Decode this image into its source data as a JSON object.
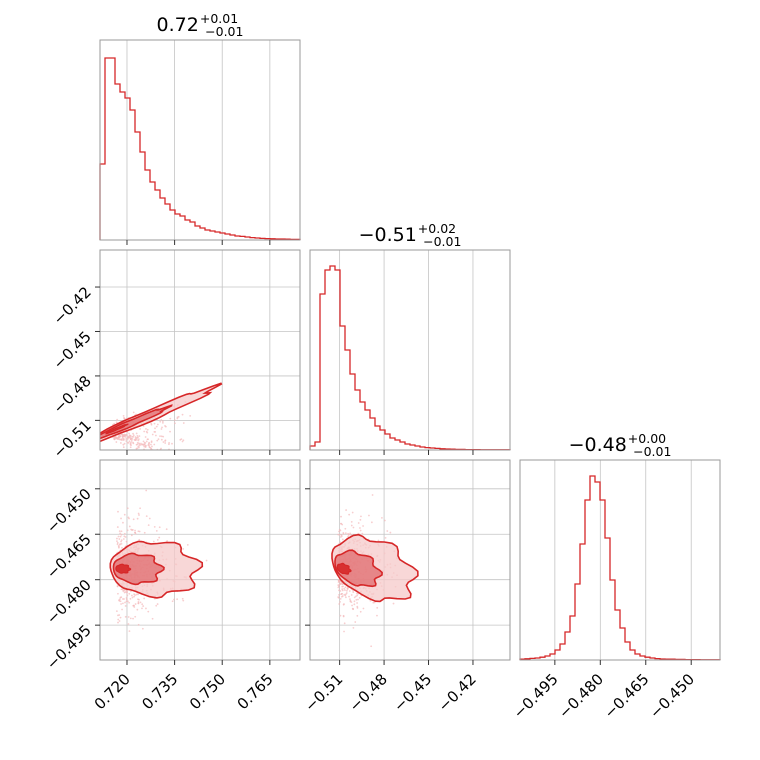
{
  "colors": {
    "accent": "#d62728",
    "fill_dark": "#e06b6e",
    "fill_light": "#f6c9ca",
    "scatter": "#f4b9ba"
  },
  "chart_data": {
    "type": "corner",
    "parameters": [
      {
        "index": 0,
        "range": [
          0.7115,
          0.7745
        ],
        "ticks": [
          0.72,
          0.735,
          0.75,
          0.765
        ],
        "tick_labels": [
          "0.720",
          "0.735",
          "0.750",
          "0.765"
        ]
      },
      {
        "index": 1,
        "range": [
          -0.53,
          -0.395
        ],
        "ticks": [
          -0.51,
          -0.48,
          -0.45,
          -0.42
        ],
        "tick_labels": [
          "−0.51",
          "−0.48",
          "−0.45",
          "−0.42"
        ]
      },
      {
        "index": 2,
        "range": [
          -0.5065,
          -0.4405
        ],
        "ticks": [
          -0.495,
          -0.48,
          -0.465,
          -0.45
        ],
        "tick_labels": [
          "−0.495",
          "−0.480",
          "−0.465",
          "−0.450"
        ]
      }
    ],
    "titles": [
      {
        "value": "0.72",
        "plus": "+0.01",
        "minus": "−0.01"
      },
      {
        "value": "−0.51",
        "plus": "+0.02",
        "minus": "−0.01"
      },
      {
        "value": "−0.48",
        "plus": "+0.00",
        "minus": "−0.01"
      }
    ],
    "marginals": [
      {
        "param": 0,
        "bin_range": [
          0.7115,
          0.7745
        ],
        "counts": [
          0.38,
          0.91,
          0.91,
          0.78,
          0.74,
          0.71,
          0.65,
          0.54,
          0.44,
          0.35,
          0.29,
          0.25,
          0.21,
          0.18,
          0.15,
          0.13,
          0.12,
          0.1,
          0.09,
          0.07,
          0.06,
          0.05,
          0.045,
          0.04,
          0.035,
          0.03,
          0.025,
          0.02,
          0.018,
          0.015,
          0.012,
          0.01,
          0.008,
          0.007,
          0.006,
          0.005,
          0.005,
          0.004,
          0.003,
          0.003
        ]
      },
      {
        "param": 1,
        "bin_range": [
          -0.53,
          -0.395
        ],
        "counts": [
          0.02,
          0.04,
          0.78,
          0.9,
          0.92,
          0.9,
          0.62,
          0.5,
          0.38,
          0.3,
          0.24,
          0.2,
          0.16,
          0.12,
          0.1,
          0.08,
          0.06,
          0.05,
          0.04,
          0.03,
          0.025,
          0.02,
          0.015,
          0.012,
          0.01,
          0.008,
          0.006,
          0.005,
          0.004,
          0.003,
          0.003,
          0.002,
          0.002,
          0.002,
          0.001,
          0.001,
          0.001,
          0.001,
          0.001,
          0.001
        ]
      },
      {
        "param": 2,
        "bin_range": [
          -0.5065,
          -0.4405
        ],
        "counts": [
          0.004,
          0.006,
          0.008,
          0.01,
          0.014,
          0.02,
          0.03,
          0.05,
          0.08,
          0.14,
          0.22,
          0.38,
          0.58,
          0.8,
          0.92,
          0.89,
          0.8,
          0.61,
          0.4,
          0.25,
          0.16,
          0.09,
          0.05,
          0.03,
          0.02,
          0.014,
          0.01,
          0.007,
          0.005,
          0.004,
          0.004,
          0.003,
          0.003,
          0.002,
          0.002,
          0.002,
          0.001,
          0.001,
          0.001,
          0.001
        ]
      }
    ],
    "correlations": [
      {
        "x": 0,
        "y": 1,
        "mean": [
          0.7148,
          -0.5175
        ],
        "sd": [
          0.006,
          0.0052
        ],
        "rho": 0.94
      },
      {
        "x": 0,
        "y": 2,
        "mean": [
          0.7168,
          -0.4764
        ],
        "sd": [
          0.005,
          0.0045
        ],
        "rho": -0.05
      },
      {
        "x": 1,
        "y": 2,
        "mean": [
          -0.511,
          -0.4764
        ],
        "sd": [
          0.01,
          0.005
        ],
        "rho": -0.35
      }
    ]
  }
}
